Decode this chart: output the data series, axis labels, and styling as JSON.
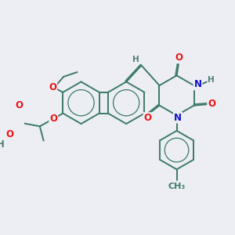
{
  "bg_color": "#eceef4",
  "bond_color": "#3d7a68",
  "bond_width": 1.4,
  "atom_colors": {
    "O": "#ee1111",
    "N": "#1111cc",
    "H": "#4a8070",
    "C": "#3d7a68"
  },
  "font_size": 8.5,
  "xlim": [
    0,
    10
  ],
  "ylim": [
    0,
    10
  ]
}
